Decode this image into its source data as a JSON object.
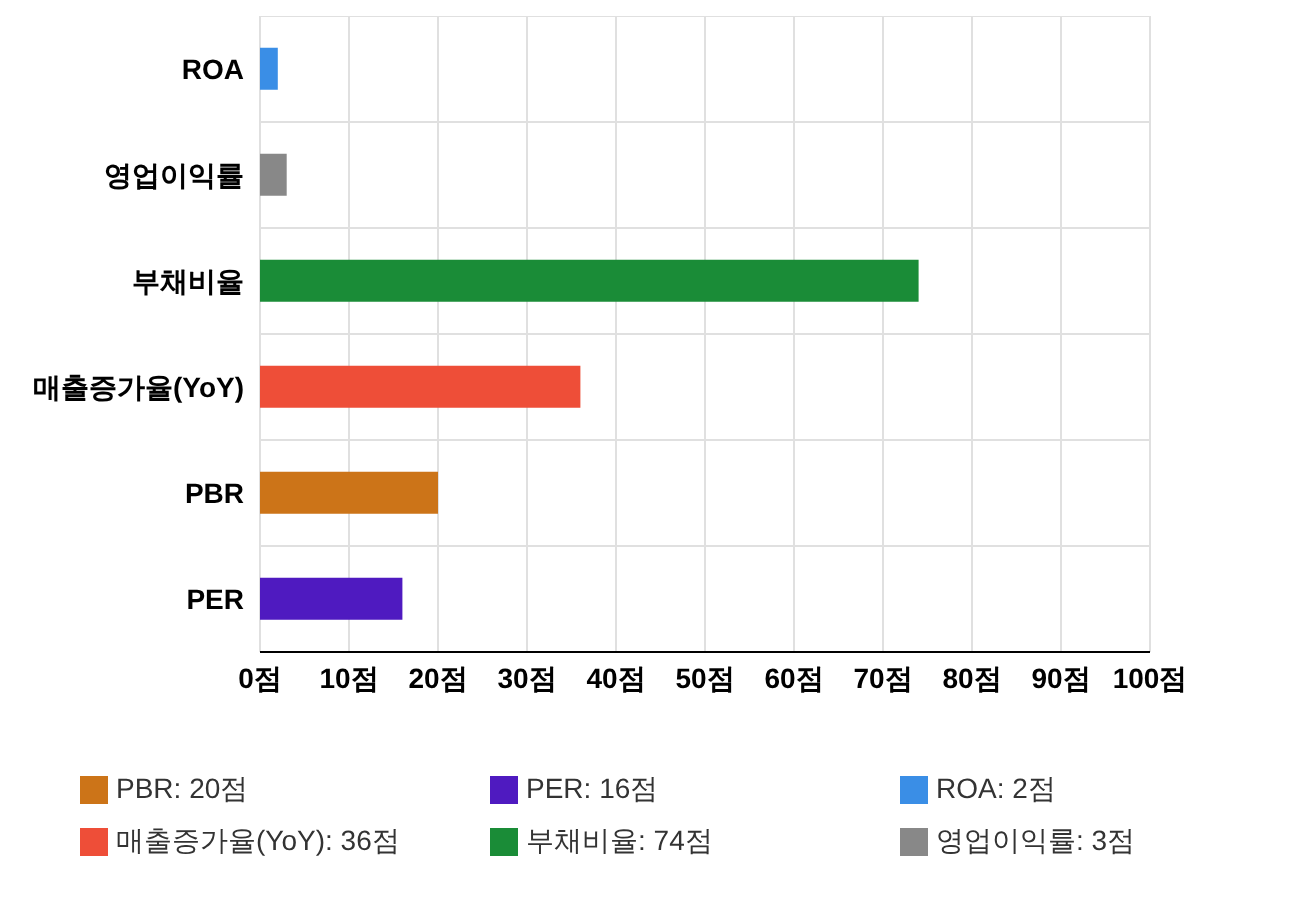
{
  "chart_data": {
    "type": "bar",
    "orientation": "horizontal",
    "stacked": true,
    "categories": [
      "ROA",
      "영업이익률",
      "부채비율",
      "매출증가율(YoY)",
      "PBR",
      "PER"
    ],
    "series": [
      {
        "name": "ROA: 2점",
        "color": "#3a8ee6",
        "values": [
          2,
          null,
          null,
          null,
          null,
          null
        ]
      },
      {
        "name": "영업이익률: 3점",
        "color": "#888888",
        "values": [
          null,
          3,
          null,
          null,
          null,
          null
        ]
      },
      {
        "name": "부채비율: 74점",
        "color": "#1a8c37",
        "values": [
          null,
          null,
          74,
          null,
          null,
          null
        ]
      },
      {
        "name": "매출증가율(YoY): 36점",
        "color": "#ee4e38",
        "values": [
          null,
          null,
          null,
          36,
          null,
          null
        ]
      },
      {
        "name": "PBR: 20점",
        "color": "#cc7418",
        "values": [
          null,
          null,
          null,
          null,
          20,
          null
        ]
      },
      {
        "name": "PER: 16점",
        "color": "#4f1ac0",
        "values": [
          null,
          null,
          null,
          null,
          null,
          16
        ]
      }
    ],
    "xlim": [
      0,
      100
    ],
    "xticks": [
      {
        "value": 0,
        "label": "0점"
      },
      {
        "value": 10,
        "label": "10점"
      },
      {
        "value": 20,
        "label": "20점"
      },
      {
        "value": 30,
        "label": "30점"
      },
      {
        "value": 40,
        "label": "40점"
      },
      {
        "value": 50,
        "label": "50점"
      },
      {
        "value": 60,
        "label": "60점"
      },
      {
        "value": 70,
        "label": "70점"
      },
      {
        "value": 80,
        "label": "80점"
      },
      {
        "value": 90,
        "label": "90점"
      },
      {
        "value": 100,
        "label": "100점"
      }
    ],
    "grid": true,
    "legend": "bottom"
  }
}
